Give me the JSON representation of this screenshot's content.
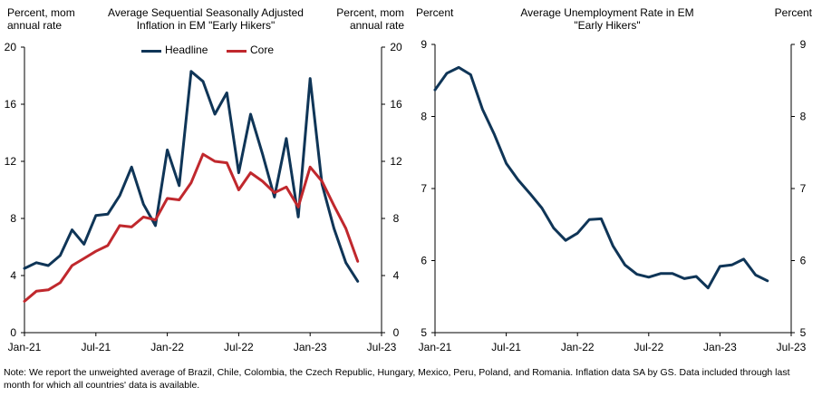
{
  "chart_data": [
    {
      "type": "line",
      "title": "Average Sequential Seasonally Adjusted Inflation in EM \"Early Hikers\"",
      "ylabel_left": "Percent, mom annual rate",
      "ylabel_right": "Percent, mom annual rate",
      "ylim": [
        0,
        20
      ],
      "yticks": [
        0,
        4,
        8,
        12,
        16,
        20
      ],
      "ytick_labels": [
        "0",
        "4",
        "8",
        "12",
        "16",
        "20"
      ],
      "xlim": [
        0,
        30
      ],
      "xticks": [
        0,
        6,
        12,
        18,
        24,
        30
      ],
      "xtick_labels": [
        "Jan-21",
        "Jul-21",
        "Jan-22",
        "Jul-22",
        "Jan-23",
        "Jul-23"
      ],
      "legend_position": "top-center",
      "grid": false,
      "series": [
        {
          "name": "Headline",
          "color": "#0f3557",
          "x": [
            0,
            1,
            2,
            3,
            4,
            5,
            6,
            7,
            8,
            9,
            10,
            11,
            12,
            13,
            14,
            15,
            16,
            17,
            18,
            19,
            20,
            21,
            22,
            23,
            24,
            25,
            26,
            27,
            28
          ],
          "values": [
            4.5,
            4.9,
            4.7,
            5.4,
            7.2,
            6.2,
            8.2,
            8.3,
            9.6,
            11.6,
            9.0,
            7.5,
            12.8,
            10.3,
            18.3,
            17.6,
            15.3,
            16.8,
            11.2,
            15.3,
            12.5,
            9.5,
            13.6,
            8.1,
            17.8,
            10.4,
            7.3,
            4.9,
            3.6
          ]
        },
        {
          "name": "Core",
          "color": "#c0282d",
          "x": [
            0,
            1,
            2,
            3,
            4,
            5,
            6,
            7,
            8,
            9,
            10,
            11,
            12,
            13,
            14,
            15,
            16,
            17,
            18,
            19,
            20,
            21,
            22,
            23,
            24,
            25,
            26,
            27,
            28
          ],
          "values": [
            2.2,
            2.9,
            3.0,
            3.5,
            4.7,
            5.2,
            5.7,
            6.1,
            7.5,
            7.4,
            8.1,
            7.9,
            9.4,
            9.3,
            10.5,
            12.5,
            12.0,
            11.9,
            10.0,
            11.2,
            10.6,
            9.8,
            10.2,
            8.8,
            11.6,
            10.6,
            8.9,
            7.3,
            5.0
          ]
        }
      ]
    },
    {
      "type": "line",
      "title": "Average Unemployment Rate in EM \"Early Hikers\"",
      "ylabel_left": "Percent",
      "ylabel_right": "Percent",
      "ylim": [
        5,
        9
      ],
      "yticks": [
        5,
        6,
        7,
        8,
        9
      ],
      "ytick_labels": [
        "5",
        "6",
        "7",
        "8",
        "9"
      ],
      "xlim": [
        0,
        30
      ],
      "xticks": [
        0,
        6,
        12,
        18,
        24,
        30
      ],
      "xtick_labels": [
        "Jan-21",
        "Jul-21",
        "Jan-22",
        "Jul-22",
        "Jan-23",
        "Jul-23"
      ],
      "grid": false,
      "series": [
        {
          "name": "Unemployment",
          "color": "#0f3557",
          "x": [
            0,
            1,
            2,
            3,
            4,
            5,
            6,
            7,
            8,
            9,
            10,
            11,
            12,
            13,
            14,
            15,
            16,
            17,
            18,
            19,
            20,
            21,
            22,
            23,
            24,
            25,
            26,
            27,
            28
          ],
          "values": [
            8.37,
            8.6,
            8.68,
            8.58,
            8.1,
            7.75,
            7.35,
            7.12,
            6.93,
            6.73,
            6.45,
            6.28,
            6.38,
            6.57,
            6.58,
            6.2,
            5.94,
            5.81,
            5.77,
            5.82,
            5.82,
            5.75,
            5.78,
            5.62,
            5.92,
            5.94,
            6.02,
            5.8,
            5.72
          ]
        }
      ]
    }
  ],
  "note": "Note: We report the unweighted average of Brazil, Chile, Colombia, the Czech Republic, Hungary, Mexico, Peru, Poland, and Romania. Inflation data SA by GS. Data included through last month for which all countries' data is available."
}
